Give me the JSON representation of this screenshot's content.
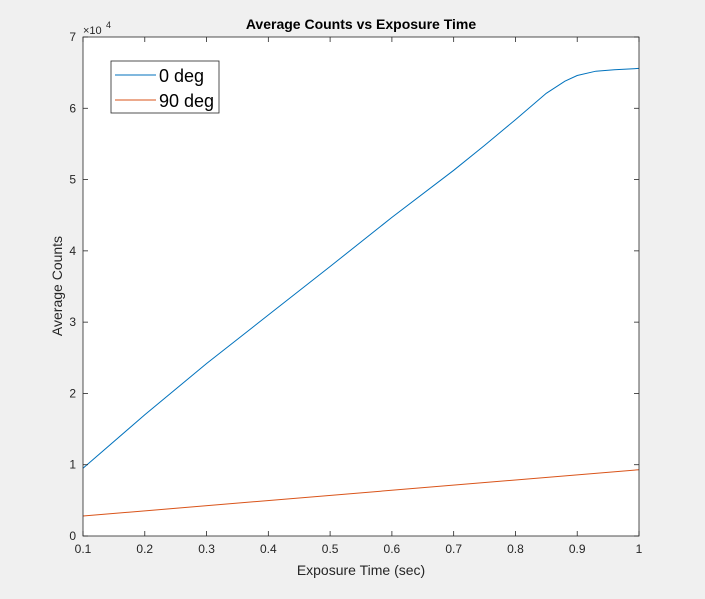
{
  "chart_data": {
    "type": "line",
    "title": "Average Counts vs Exposure Time",
    "xlabel": "Exposure Time (sec)",
    "ylabel": "Average Counts",
    "xlim": [
      0.1,
      1
    ],
    "ylim": [
      0,
      70000
    ],
    "x_ticks": [
      0.1,
      0.2,
      0.3,
      0.4,
      0.5,
      0.6,
      0.7,
      0.8,
      0.9,
      1
    ],
    "x_tick_labels": [
      "0.1",
      "0.2",
      "0.3",
      "0.4",
      "0.5",
      "0.6",
      "0.7",
      "0.8",
      "0.9",
      "1"
    ],
    "y_ticks": [
      0,
      10000,
      20000,
      30000,
      40000,
      50000,
      60000,
      70000
    ],
    "y_tick_labels": [
      "0",
      "1",
      "2",
      "3",
      "4",
      "5",
      "6",
      "7"
    ],
    "y_exponent": {
      "base": "×10",
      "power": "4"
    },
    "grid": false,
    "legend_position": "top-left",
    "series": [
      {
        "name": "0 deg",
        "color": "#0072bd",
        "x": [
          0.1,
          0.2,
          0.3,
          0.4,
          0.5,
          0.6,
          0.7,
          0.75,
          0.8,
          0.85,
          0.88,
          0.9,
          0.93,
          0.96,
          1.0
        ],
        "y": [
          9500,
          17000,
          24200,
          31000,
          37800,
          44700,
          51300,
          54800,
          58400,
          62100,
          63800,
          64600,
          65200,
          65400,
          65600
        ]
      },
      {
        "name": "90 deg",
        "color": "#d95319",
        "x": [
          0.1,
          1.0
        ],
        "y": [
          2800,
          9300
        ]
      }
    ]
  }
}
